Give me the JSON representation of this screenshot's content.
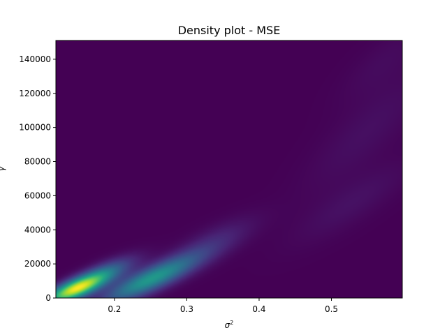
{
  "chart_data": {
    "type": "heatmap",
    "title": "Density plot - MSE",
    "xlabel_base": "σ",
    "xlabel_exp": "2",
    "ylabel": "γ",
    "xlim": [
      0.119,
      0.598
    ],
    "ylim": [
      0,
      151000
    ],
    "xticks": [
      0.2,
      0.3,
      0.4,
      0.5
    ],
    "xtick_labels": [
      "0.2",
      "0.3",
      "0.4",
      "0.5"
    ],
    "yticks": [
      0,
      20000,
      40000,
      60000,
      80000,
      100000,
      120000,
      140000
    ],
    "ytick_labels": [
      "0",
      "20000",
      "40000",
      "60000",
      "80000",
      "100000",
      "120000",
      "140000"
    ],
    "colormap": "viridis",
    "background_color": "#440154",
    "grid": false,
    "legend": "none",
    "density_components": [
      {
        "center_x": 0.145,
        "center_y": 5000,
        "spread_along_x": 0.028,
        "spread_across_y": 4000,
        "slope": 160000,
        "weight": 1.0
      },
      {
        "center_x": 0.25,
        "center_y": 11000,
        "spread_along_x": 0.045,
        "spread_across_y": 5200,
        "slope": 180000,
        "weight": 0.6
      },
      {
        "center_x": 0.185,
        "center_y": 14000,
        "spread_along_x": 0.03,
        "spread_across_y": 4500,
        "slope": 170000,
        "weight": 0.35
      },
      {
        "center_x": 0.335,
        "center_y": 32000,
        "spread_along_x": 0.04,
        "spread_across_y": 6500,
        "slope": 190000,
        "weight": 0.12
      },
      {
        "center_x": 0.53,
        "center_y": 56000,
        "spread_along_x": 0.055,
        "spread_across_y": 9000,
        "slope": 250000,
        "weight": 0.05
      },
      {
        "center_x": 0.55,
        "center_y": 98000,
        "spread_along_x": 0.06,
        "spread_across_y": 14000,
        "slope": 350000,
        "weight": 0.045
      },
      {
        "center_x": 0.57,
        "center_y": 138000,
        "spread_along_x": 0.04,
        "spread_across_y": 10000,
        "slope": 300000,
        "weight": 0.03
      }
    ]
  }
}
